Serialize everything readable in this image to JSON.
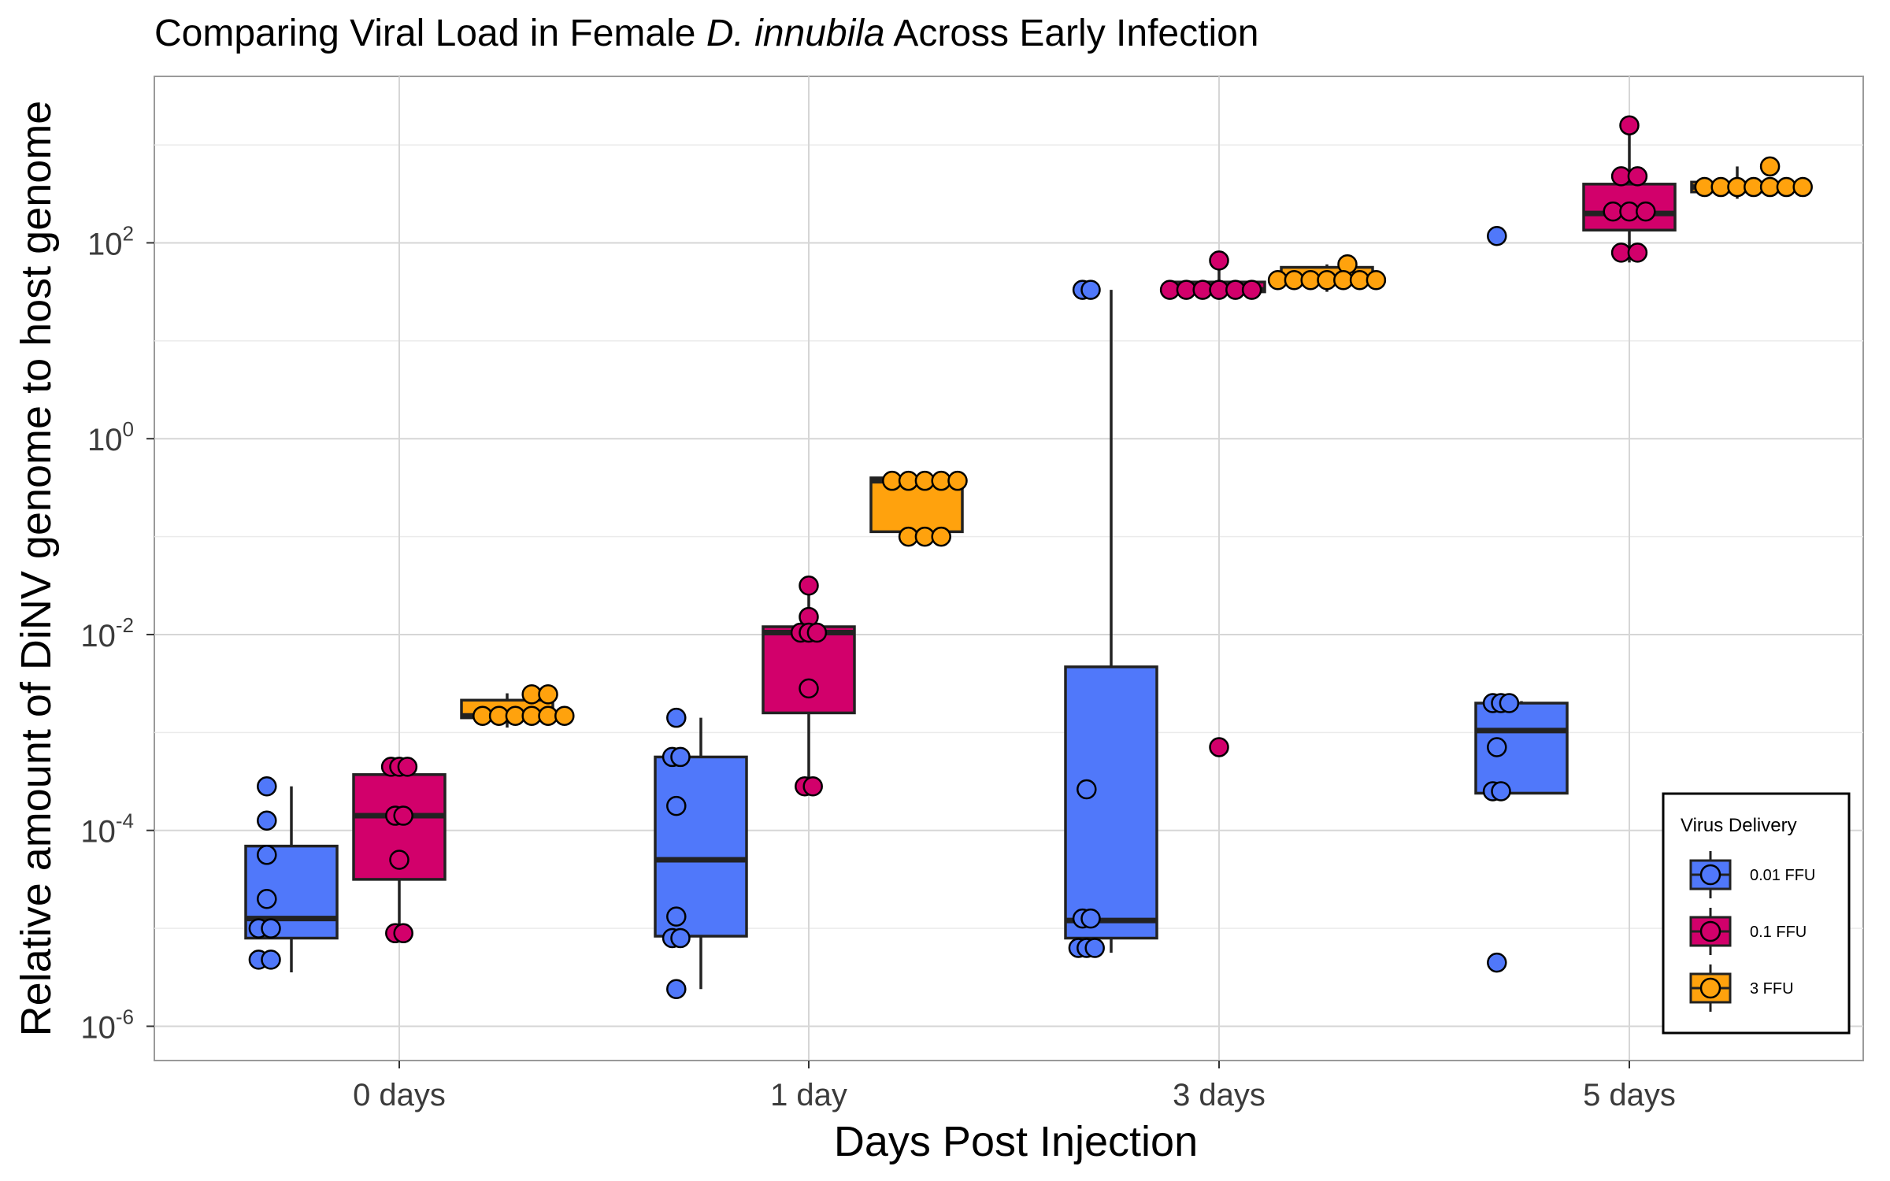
{
  "chart_data": {
    "type": "box",
    "title_prefix": "Comparing Viral Load in Female ",
    "title_italic": "D. innubila",
    "title_suffix": " Across Early Infection",
    "xlabel": "Days Post Injection",
    "ylabel": "Relative amount of DiNV genome to host genome",
    "y_scale": "log10",
    "ylim": [
      -6.35,
      3.7
    ],
    "y_ticks": [
      {
        "value": -6,
        "base": "10",
        "exp": "-6"
      },
      {
        "value": -4,
        "base": "10",
        "exp": "-4"
      },
      {
        "value": -2,
        "base": "10",
        "exp": "-2"
      },
      {
        "value": 0,
        "base": "10",
        "exp": "0"
      },
      {
        "value": 2,
        "base": "10",
        "exp": "2"
      }
    ],
    "categories": [
      "0 days",
      "1 day",
      "3 days",
      "5 days"
    ],
    "grid": true,
    "legend": {
      "title": "Virus Delivery",
      "position": "bottom-right"
    },
    "series": [
      {
        "name": "0.01 FFU",
        "color": "#5078fa",
        "boxes": [
          {
            "category": "0 days",
            "q1": -5.1,
            "median": -4.9,
            "q3": -4.16,
            "whisker_low": -5.45,
            "whisker_high": -3.55,
            "points": [
              [
                -0.06,
                -3.55
              ],
              [
                -0.06,
                -3.9
              ],
              [
                -0.06,
                -4.25
              ],
              [
                -0.06,
                -4.7
              ],
              [
                -0.08,
                -5.0
              ],
              [
                -0.05,
                -5.0
              ],
              [
                -0.08,
                -5.32
              ],
              [
                -0.05,
                -5.32
              ]
            ]
          },
          {
            "category": "1 day",
            "q1": -5.08,
            "median": -4.3,
            "q3": -3.25,
            "whisker_low": -5.62,
            "whisker_high": -2.85,
            "points": [
              [
                -0.06,
                -2.85
              ],
              [
                -0.07,
                -3.25
              ],
              [
                -0.05,
                -3.25
              ],
              [
                -0.06,
                -3.75
              ],
              [
                -0.06,
                -4.88
              ],
              [
                -0.07,
                -5.1
              ],
              [
                -0.05,
                -5.1
              ],
              [
                -0.06,
                -5.62
              ]
            ]
          },
          {
            "category": "3 days",
            "q1": -5.1,
            "median": -4.92,
            "q3": -2.33,
            "whisker_low": -5.25,
            "whisker_high": 1.52,
            "points": [
              [
                -0.07,
                1.52
              ],
              [
                -0.05,
                1.52
              ],
              [
                -0.06,
                -3.58
              ],
              [
                -0.07,
                -4.9
              ],
              [
                -0.05,
                -4.9
              ],
              [
                -0.08,
                -5.2
              ],
              [
                -0.06,
                -5.2
              ],
              [
                -0.04,
                -5.2
              ]
            ]
          },
          {
            "category": "5 days",
            "q1": -3.62,
            "median": -2.98,
            "q3": -2.7,
            "whisker_low": -3.62,
            "whisker_high": -2.68,
            "points": [
              [
                -0.07,
                -2.7
              ],
              [
                -0.05,
                -2.7
              ],
              [
                -0.03,
                -2.7
              ],
              [
                -0.06,
                -3.15
              ],
              [
                -0.07,
                -3.6
              ],
              [
                -0.05,
                -3.6
              ],
              [
                -0.06,
                2.07
              ],
              [
                -0.06,
                -5.35
              ]
            ]
          }
        ]
      },
      {
        "name": "0.1 FFU",
        "color": "#d2006b",
        "boxes": [
          {
            "category": "0 days",
            "q1": -4.5,
            "median": -3.85,
            "q3": -3.43,
            "whisker_low": -5.05,
            "whisker_high": -3.35,
            "points": [
              [
                -0.02,
                -3.35
              ],
              [
                0.0,
                -3.35
              ],
              [
                0.02,
                -3.35
              ],
              [
                -0.01,
                -3.85
              ],
              [
                0.01,
                -3.85
              ],
              [
                0.0,
                -4.3
              ],
              [
                -0.01,
                -5.05
              ],
              [
                0.01,
                -5.05
              ]
            ]
          },
          {
            "category": "1 day",
            "q1": -2.8,
            "median": -1.98,
            "q3": -1.92,
            "whisker_low": -3.55,
            "whisker_high": -1.5,
            "points": [
              [
                0.0,
                -1.5
              ],
              [
                0.0,
                -1.82
              ],
              [
                -0.02,
                -1.98
              ],
              [
                0.0,
                -1.98
              ],
              [
                0.02,
                -1.98
              ],
              [
                0.0,
                -2.55
              ],
              [
                -0.01,
                -3.55
              ],
              [
                0.01,
                -3.55
              ]
            ]
          },
          {
            "category": "3 days",
            "q1": 1.5,
            "median": 1.52,
            "q3": 1.6,
            "whisker_low": 1.5,
            "whisker_high": 1.82,
            "points": [
              [
                0.0,
                1.82
              ],
              [
                -0.12,
                1.52
              ],
              [
                -0.08,
                1.52
              ],
              [
                -0.04,
                1.52
              ],
              [
                0.0,
                1.52
              ],
              [
                0.04,
                1.52
              ],
              [
                0.08,
                1.52
              ],
              [
                0.0,
                -3.15
              ]
            ]
          },
          {
            "category": "5 days",
            "q1": 2.13,
            "median": 2.3,
            "q3": 2.6,
            "whisker_low": 1.8,
            "whisker_high": 3.2,
            "points": [
              [
                0.0,
                3.2
              ],
              [
                -0.02,
                2.68
              ],
              [
                0.02,
                2.68
              ],
              [
                -0.04,
                2.32
              ],
              [
                0.0,
                2.32
              ],
              [
                0.04,
                2.32
              ],
              [
                -0.02,
                1.9
              ],
              [
                0.02,
                1.9
              ]
            ]
          }
        ]
      },
      {
        "name": "3 FFU",
        "color": "#ffa20d",
        "boxes": [
          {
            "category": "0 days",
            "q1": -2.85,
            "median": -2.83,
            "q3": -2.67,
            "whisker_low": -2.95,
            "whisker_high": -2.6,
            "points": [
              [
                0.06,
                -2.61
              ],
              [
                0.1,
                -2.61
              ],
              [
                -0.06,
                -2.83
              ],
              [
                -0.02,
                -2.83
              ],
              [
                0.02,
                -2.83
              ],
              [
                0.06,
                -2.83
              ],
              [
                0.1,
                -2.83
              ],
              [
                0.14,
                -2.83
              ]
            ]
          },
          {
            "category": "1 day",
            "q1": -0.95,
            "median": -0.43,
            "q3": -0.4,
            "whisker_low": -0.95,
            "whisker_high": -0.4,
            "points": [
              [
                -0.06,
                -0.43
              ],
              [
                -0.02,
                -0.43
              ],
              [
                0.02,
                -0.43
              ],
              [
                0.06,
                -0.43
              ],
              [
                0.1,
                -0.43
              ],
              [
                -0.02,
                -1.0
              ],
              [
                0.02,
                -1.0
              ],
              [
                0.06,
                -1.0
              ]
            ]
          },
          {
            "category": "3 days",
            "q1": 1.6,
            "median": 1.63,
            "q3": 1.75,
            "whisker_low": 1.5,
            "whisker_high": 1.78,
            "points": [
              [
                0.05,
                1.78
              ],
              [
                -0.12,
                1.62
              ],
              [
                -0.08,
                1.62
              ],
              [
                -0.04,
                1.62
              ],
              [
                0.0,
                1.62
              ],
              [
                0.04,
                1.62
              ],
              [
                0.08,
                1.62
              ],
              [
                0.12,
                1.62
              ]
            ]
          },
          {
            "category": "5 days",
            "q1": 2.52,
            "median": 2.57,
            "q3": 2.62,
            "whisker_low": 2.45,
            "whisker_high": 2.78,
            "points": [
              [
                0.08,
                2.78
              ],
              [
                -0.08,
                2.57
              ],
              [
                -0.04,
                2.57
              ],
              [
                0.0,
                2.57
              ],
              [
                0.04,
                2.57
              ],
              [
                0.08,
                2.57
              ],
              [
                0.12,
                2.57
              ],
              [
                0.16,
                2.57
              ]
            ]
          }
        ]
      }
    ]
  }
}
